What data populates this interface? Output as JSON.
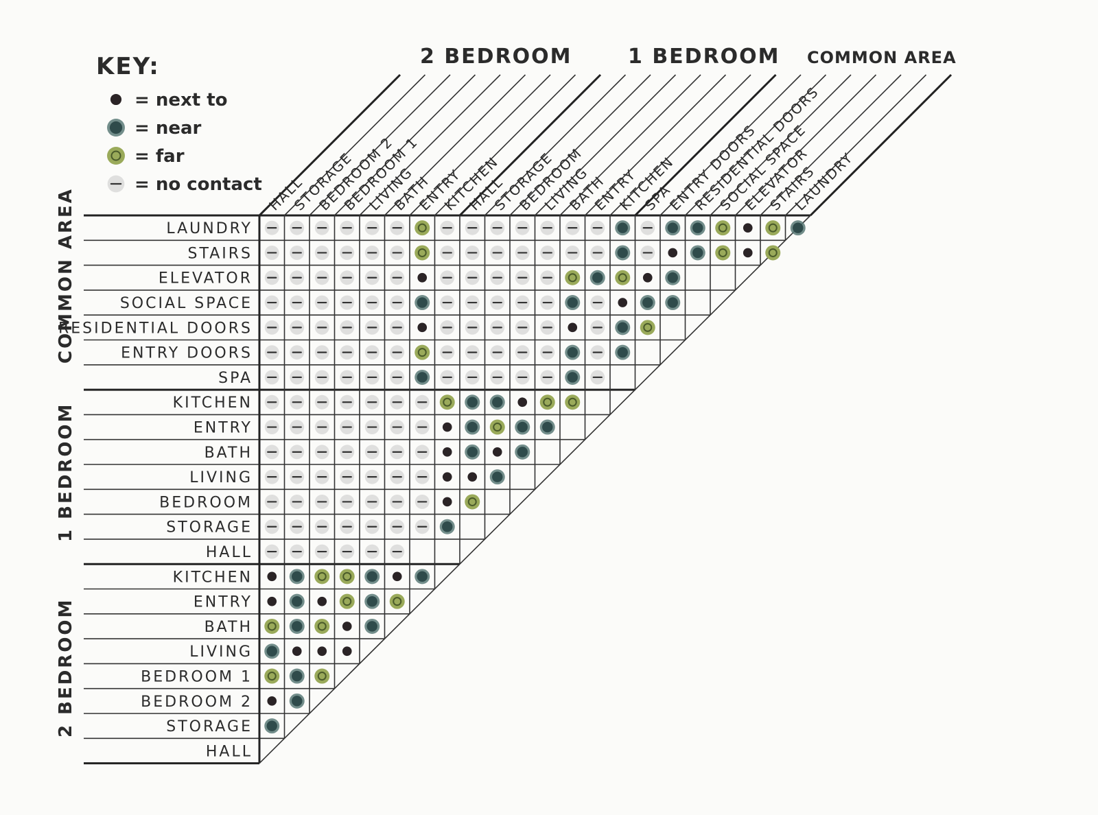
{
  "key": {
    "title": "KEY:",
    "items": [
      {
        "symbol": "next",
        "label": "= next to"
      },
      {
        "symbol": "near",
        "label": "= near"
      },
      {
        "symbol": "far",
        "label": "= far"
      },
      {
        "symbol": "none",
        "label": "= no contact"
      }
    ]
  },
  "colors": {
    "next": "#2b2426",
    "near": "#2f4b4b",
    "near_ring": "#5a7a78",
    "far": "#9aaa5a",
    "far_center": "#4a5a2a",
    "none": "#c8c8c8",
    "none_dash": "#333333"
  },
  "top_groups": [
    "2 BEDROOM",
    "1 BEDROOM",
    "COMMON AREA"
  ],
  "side_groups": [
    "COMMON AREA",
    "1 BEDROOM",
    "2 BEDROOM"
  ],
  "rows": [
    "LAUNDRY",
    "STAIRS",
    "ELEVATOR",
    "SOCIAL SPACE",
    "RESIDENTIAL DOORS",
    "ENTRY DOORS",
    "SPA",
    "KITCHEN",
    "ENTRY",
    "BATH",
    "LIVING",
    "BEDROOM",
    "STORAGE",
    "HALL",
    "KITCHEN",
    "ENTRY",
    "BATH",
    "LIVING",
    "BEDROOM 1",
    "BEDROOM 2",
    "STORAGE",
    "HALL"
  ],
  "columns": [
    "HALL",
    "STORAGE",
    "BEDROOM 2",
    "BEDROOM 1",
    "LIVING",
    "BATH",
    "ENTRY",
    "KITCHEN",
    "HALL",
    "STORAGE",
    "BEDROOM",
    "LIVING",
    "BATH",
    "ENTRY",
    "KITCHEN",
    "SPA",
    "ENTRY DOORS",
    "RESIDENTIAL DOORS",
    "SOCIAL SPACE",
    "ELEVATOR",
    "STAIRS",
    "LAUNDRY"
  ],
  "matrix": [
    "------f-------N-NNfnfN",
    "------f-------N-nNfnf",
    "------n-----fNfnN",
    "------N-----N-nNN",
    "------n-----n-Nf",
    "------f-----N-N",
    "------N-----N-",
    "-------fNNnff",
    "-------nNfNN",
    "-------nNnN",
    "-------nnN",
    "-------nf",
    "-------N",
    "------",
    "nNffNnN",
    "nNnfNf",
    "fNfnN",
    "Nnnn",
    "fNf",
    "nN",
    "N",
    ""
  ]
}
